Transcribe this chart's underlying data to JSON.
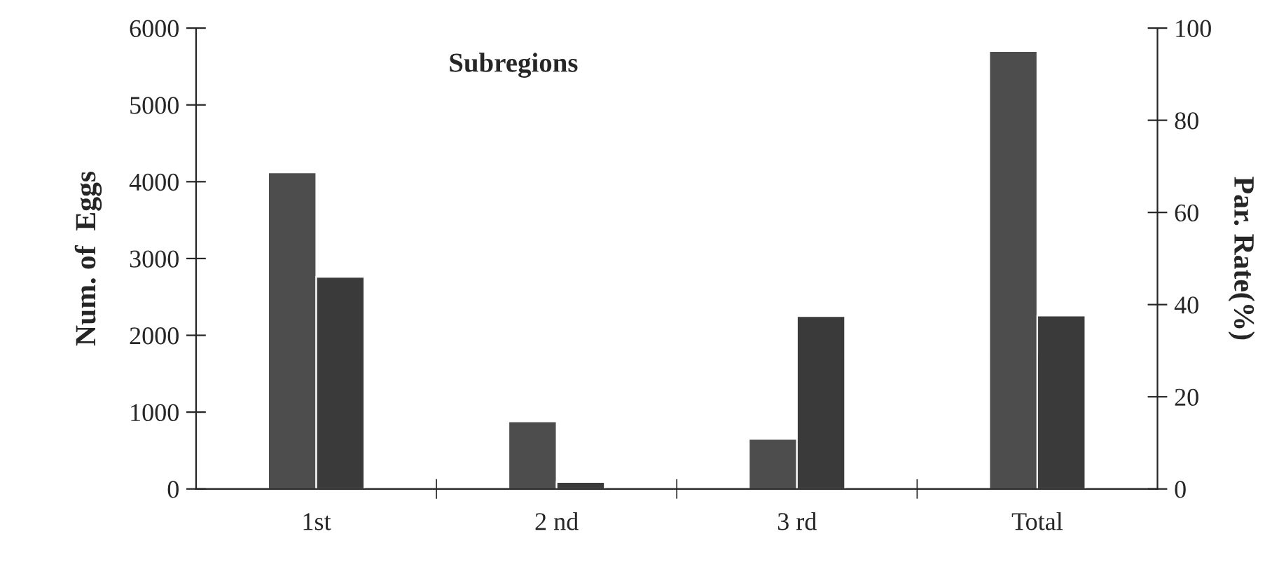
{
  "chart_data": {
    "type": "bar",
    "title": "Subregions",
    "categories": [
      "1st",
      "2 nd",
      "3 rd",
      "Total"
    ],
    "ylabel": "Num. of  Eggs",
    "y2label": "Par. Rate(%)",
    "series": [
      {
        "color": "#4d4d4d",
        "values": [
          4120,
          880,
          650,
          5700
        ]
      },
      {
        "color": "#3a3a3a",
        "values": [
          46,
          1.5,
          37.5,
          37.6
        ],
        "axis": "y2"
      }
    ],
    "ylim": [
      0,
      6000
    ],
    "yticks": [
      0,
      1000,
      2000,
      3000,
      4000,
      5000,
      6000
    ],
    "y2lim": [
      0,
      100
    ],
    "y2ticks": [
      0,
      20,
      40,
      60,
      80,
      100
    ],
    "grid": false,
    "legend": false
  }
}
